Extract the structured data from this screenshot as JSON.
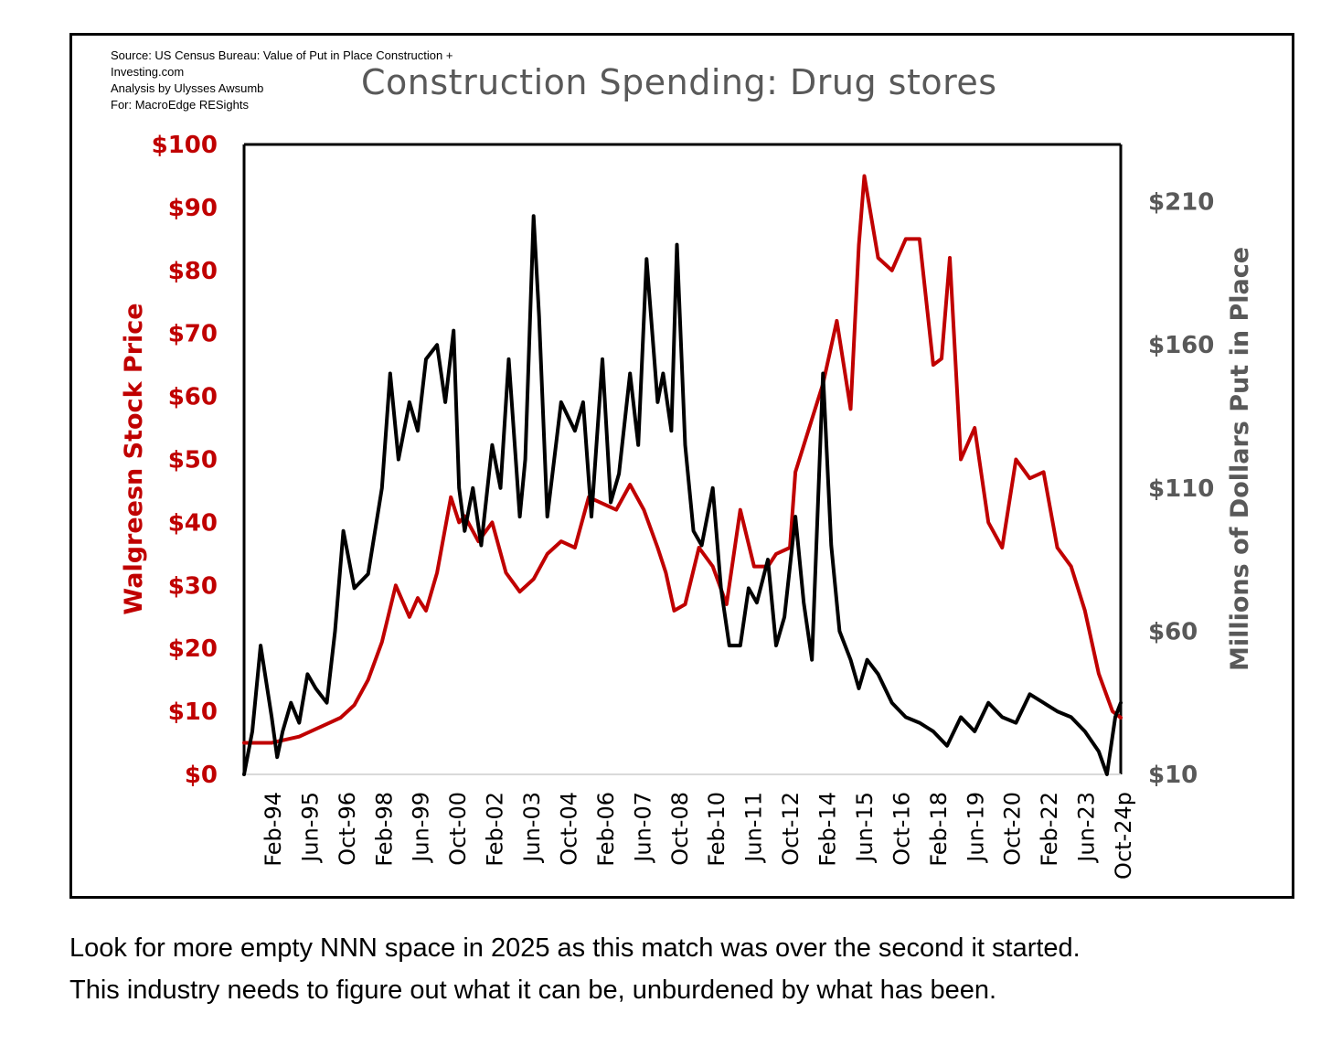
{
  "source": {
    "lines": [
      "Source: US Census Bureau: Value of Put in Place Construction +",
      "Investing.com",
      "Analysis by Ulysses Awsumb",
      "For: MacroEdge RESights"
    ]
  },
  "caption": {
    "lines": [
      "Look for more empty NNN space in 2025 as this match was over the second it started.",
      "This industry needs to figure out what it can be, unburdened by what has been."
    ]
  },
  "colors": {
    "stock": "#c00000",
    "construction": "#000000",
    "left_axis": "#c00000",
    "right_axis": "#595959"
  },
  "chart_data": {
    "type": "line",
    "title": "Construction Spending: Drug stores",
    "x_ticks": [
      "Feb-94",
      "Jun-95",
      "Oct-96",
      "Feb-98",
      "Jun-99",
      "Oct-00",
      "Feb-02",
      "Jun-03",
      "Oct-04",
      "Feb-06",
      "Jun-07",
      "Oct-08",
      "Feb-10",
      "Jun-11",
      "Oct-12",
      "Feb-14",
      "Jun-15",
      "Oct-16",
      "Feb-18",
      "Jun-19",
      "Oct-20",
      "Feb-22",
      "Jun-23",
      "Oct-24p"
    ],
    "y_left": {
      "label": "Walgreesn Stock Price",
      "range": [
        0,
        100
      ],
      "ticks": [
        "$0",
        "$10",
        "$20",
        "$30",
        "$40",
        "$50",
        "$60",
        "$70",
        "$80",
        "$90",
        "$100"
      ]
    },
    "y_right": {
      "label": "Millions of Dollars Put in Place",
      "range": [
        10,
        230
      ],
      "ticks": [
        "$10",
        "$60",
        "$110",
        "$160",
        "$210"
      ]
    },
    "series": [
      {
        "name": "Walgreesn Stock Price",
        "axis": "left",
        "x": [
          1993.0,
          1993.5,
          1994.0,
          1994.5,
          1995.0,
          1995.5,
          1996.0,
          1996.5,
          1997.0,
          1997.5,
          1998.0,
          1998.5,
          1999.0,
          1999.3,
          1999.6,
          2000.0,
          2000.5,
          2000.8,
          2001.0,
          2001.5,
          2002.0,
          2002.5,
          2003.0,
          2003.5,
          2004.0,
          2004.5,
          2005.0,
          2005.5,
          2006.0,
          2006.5,
          2007.0,
          2007.5,
          2008.0,
          2008.3,
          2008.6,
          2009.0,
          2009.5,
          2010.0,
          2010.5,
          2011.0,
          2011.5,
          2012.0,
          2012.3,
          2012.8,
          2013.0,
          2013.5,
          2014.0,
          2014.5,
          2015.0,
          2015.3,
          2015.5,
          2016.0,
          2016.5,
          2017.0,
          2017.5,
          2018.0,
          2018.3,
          2018.6,
          2019.0,
          2019.5,
          2020.0,
          2020.5,
          2021.0,
          2021.5,
          2022.0,
          2022.5,
          2023.0,
          2023.5,
          2024.0,
          2024.5,
          2024.8
        ],
        "values": [
          5,
          5,
          5,
          5.5,
          6,
          7,
          8,
          9,
          11,
          15,
          21,
          30,
          25,
          28,
          26,
          32,
          44,
          40,
          41,
          37,
          40,
          32,
          29,
          31,
          35,
          37,
          36,
          44,
          43,
          42,
          46,
          42,
          36,
          32,
          26,
          27,
          36,
          33,
          27,
          42,
          33,
          33,
          35,
          36,
          48,
          55,
          62,
          72,
          58,
          84,
          95,
          82,
          80,
          85,
          85,
          65,
          66,
          82,
          50,
          55,
          40,
          36,
          50,
          47,
          48,
          36,
          33,
          26,
          16,
          10,
          9
        ]
      },
      {
        "name": "Millions of Dollars Put in Place",
        "axis": "right",
        "x": [
          1993.0,
          1993.3,
          1993.6,
          1994.0,
          1994.2,
          1994.4,
          1994.7,
          1995.0,
          1995.3,
          1995.6,
          1996.0,
          1996.3,
          1996.6,
          1997.0,
          1997.5,
          1998.0,
          1998.3,
          1998.6,
          1999.0,
          1999.3,
          1999.6,
          2000.0,
          2000.3,
          2000.6,
          2000.8,
          2001.0,
          2001.3,
          2001.6,
          2002.0,
          2002.3,
          2002.6,
          2003.0,
          2003.2,
          2003.5,
          2003.7,
          2004.0,
          2004.5,
          2005.0,
          2005.3,
          2005.6,
          2006.0,
          2006.3,
          2006.6,
          2007.0,
          2007.3,
          2007.6,
          2008.0,
          2008.2,
          2008.5,
          2008.7,
          2009.0,
          2009.3,
          2009.6,
          2010.0,
          2010.3,
          2010.6,
          2011.0,
          2011.3,
          2011.6,
          2012.0,
          2012.3,
          2012.6,
          2013.0,
          2013.3,
          2013.6,
          2014.0,
          2014.3,
          2014.6,
          2015.0,
          2015.3,
          2015.6,
          2016.0,
          2016.5,
          2017.0,
          2017.5,
          2018.0,
          2018.5,
          2019.0,
          2019.5,
          2020.0,
          2020.5,
          2021.0,
          2021.5,
          2022.0,
          2022.5,
          2023.0,
          2023.5,
          2024.0,
          2024.3,
          2024.6,
          2024.8
        ],
        "values": [
          10,
          25,
          55,
          30,
          16,
          25,
          35,
          28,
          45,
          40,
          35,
          60,
          95,
          75,
          80,
          110,
          150,
          120,
          140,
          130,
          155,
          160,
          140,
          165,
          110,
          95,
          110,
          90,
          125,
          110,
          155,
          100,
          120,
          205,
          170,
          100,
          140,
          130,
          140,
          100,
          155,
          105,
          115,
          150,
          125,
          190,
          140,
          150,
          130,
          195,
          125,
          95,
          90,
          110,
          75,
          55,
          55,
          75,
          70,
          85,
          55,
          65,
          100,
          70,
          50,
          150,
          90,
          60,
          50,
          40,
          50,
          45,
          35,
          30,
          28,
          25,
          20,
          30,
          25,
          35,
          30,
          28,
          38,
          35,
          32,
          30,
          25,
          18,
          10,
          30,
          35
        ]
      }
    ]
  }
}
